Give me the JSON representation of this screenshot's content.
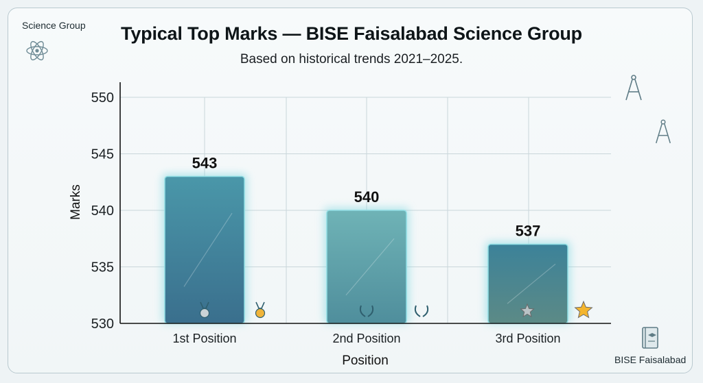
{
  "corner_left": "Science Group",
  "corner_right": "BISE Faisalabad",
  "icons": [
    "atom-icon",
    "compass-icon",
    "book-icon",
    "silver-medal-icon",
    "gold-medal-icon",
    "laurel-icon",
    "star-icon"
  ],
  "colors": {
    "bar_1": "#3f8aa0",
    "bar_2": "#5fa5ad",
    "bar_3": "#3b7f98",
    "glow": "#7fd7e0",
    "grid": "#c9d6da",
    "axis": "#111111"
  },
  "chart_data": {
    "type": "bar",
    "title": "Typical Top Marks — BISE Faisalabad Science Group",
    "subtitle": "Based on historical trends 2021–2025.",
    "xlabel": "Position",
    "ylabel": "Marks",
    "categories": [
      "1st Position",
      "2nd Position",
      "3rd Position"
    ],
    "values": [
      543,
      540,
      537
    ],
    "data_labels": [
      "543",
      "540",
      "537"
    ],
    "ylim": [
      530,
      550
    ],
    "yticks": [
      "550",
      "545",
      "540",
      "535",
      "530"
    ],
    "grid": true
  }
}
